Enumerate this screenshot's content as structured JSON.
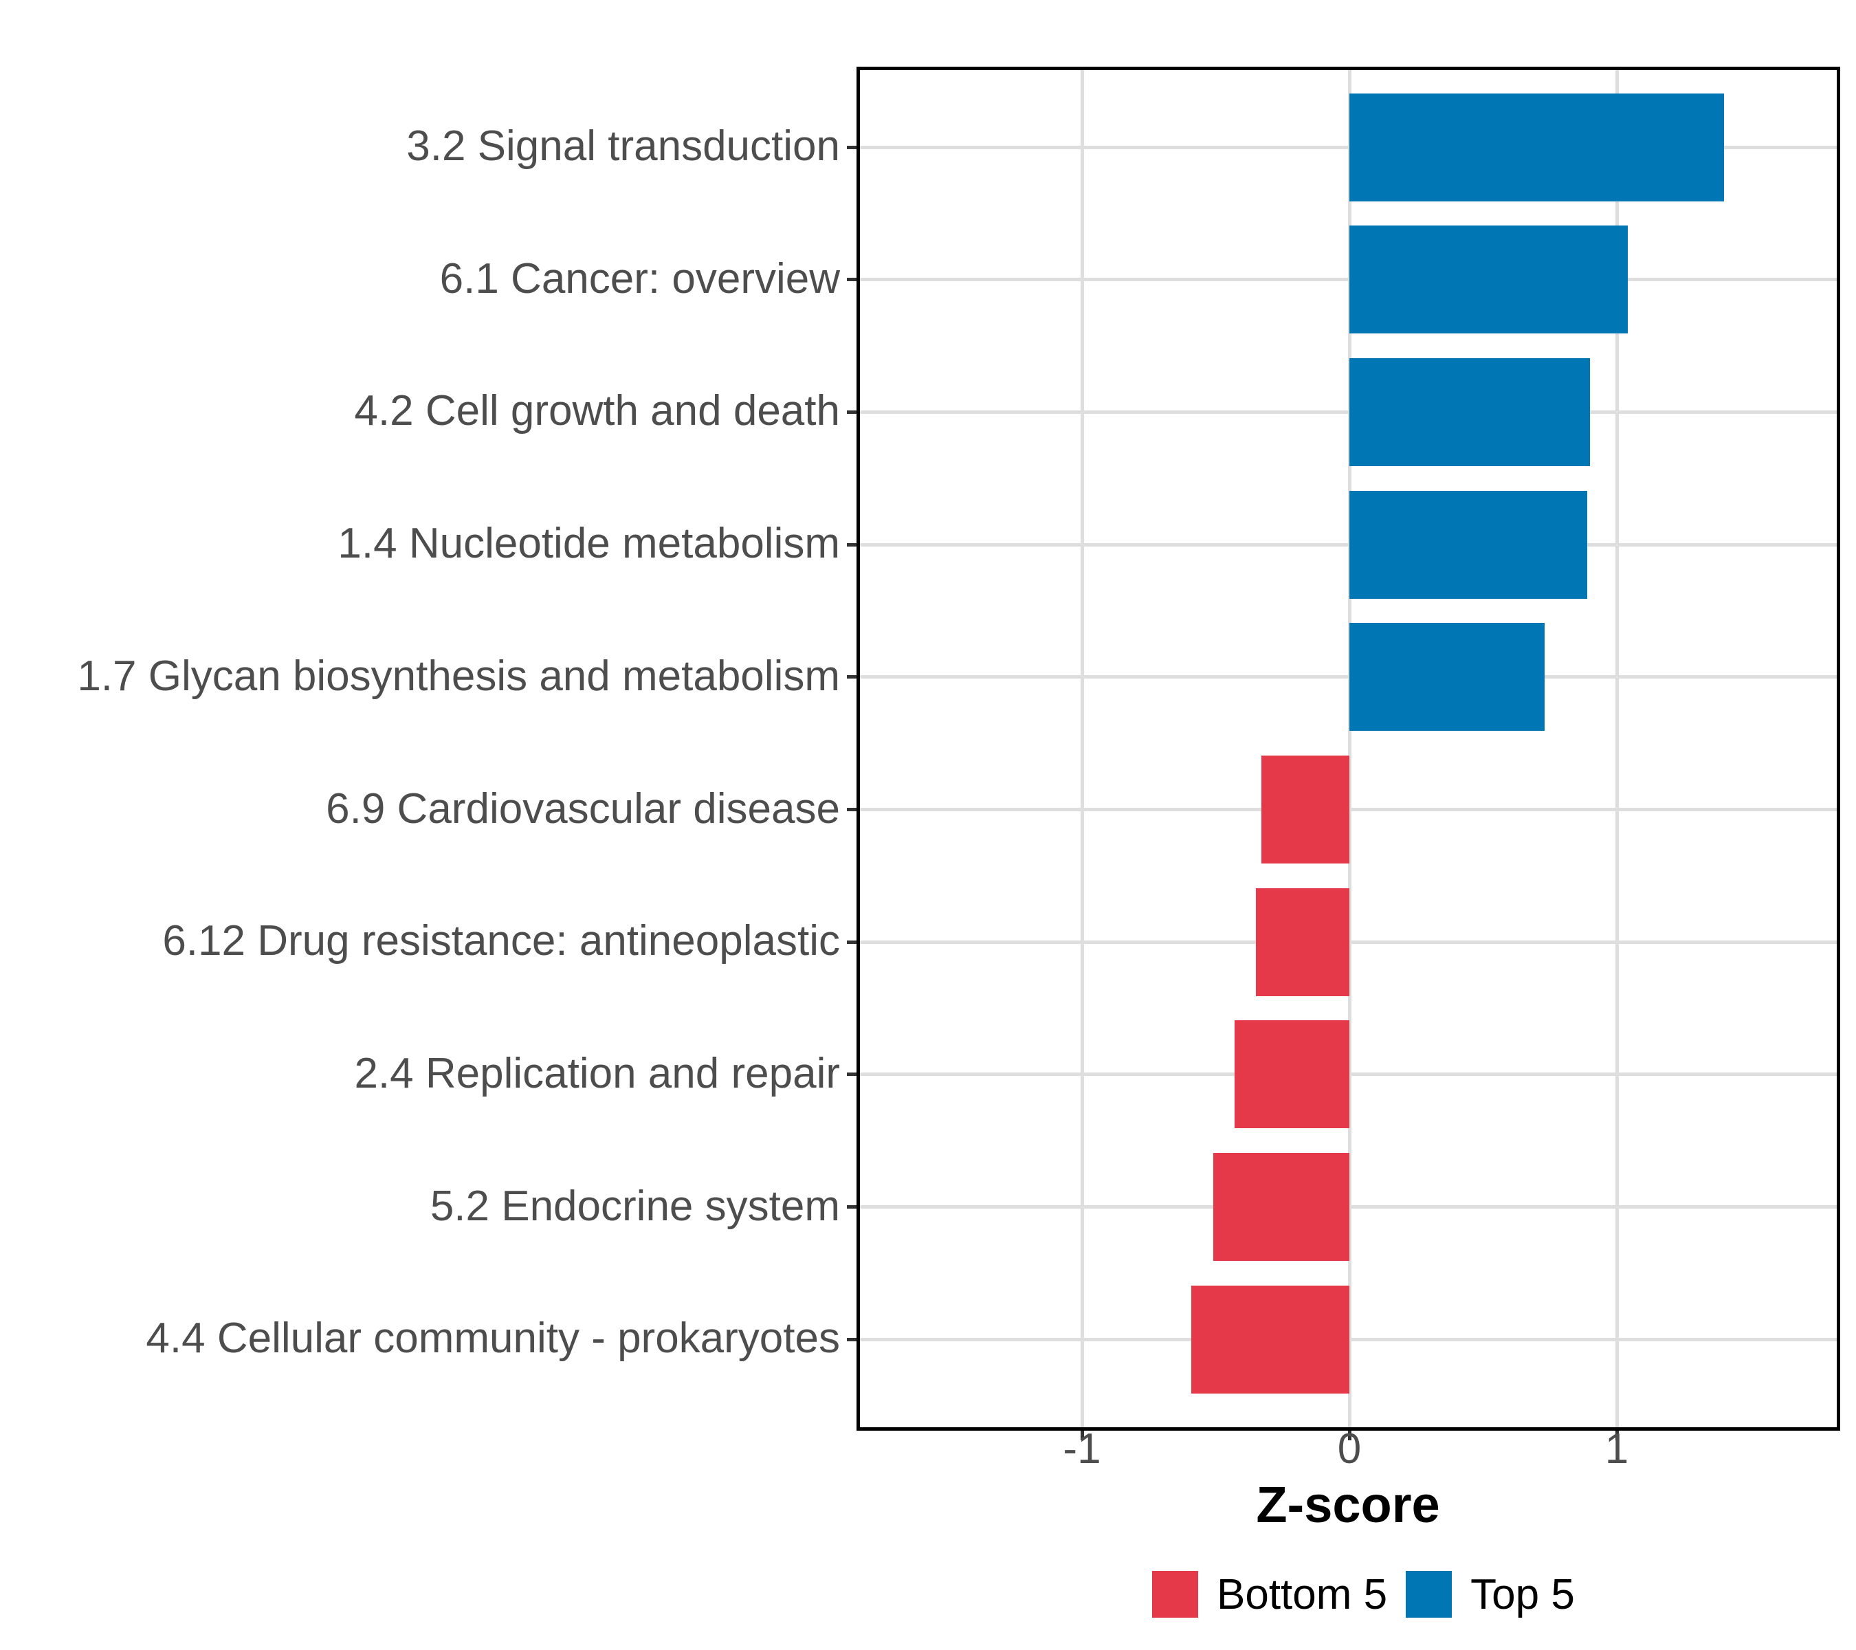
{
  "chart_data": {
    "type": "bar",
    "orientation": "horizontal",
    "title": "",
    "xlabel": "Z-score",
    "ylabel": "",
    "categories": [
      "3.2 Signal transduction",
      "6.1 Cancer: overview",
      "4.2 Cell growth and death",
      "1.4 Nucleotide metabolism",
      "1.7 Glycan biosynthesis and metabolism",
      "6.9 Cardiovascular disease",
      "6.12 Drug resistance: antineoplastic",
      "2.4 Replication and repair",
      "5.2 Endocrine system",
      "4.4 Cellular community - prokaryotes"
    ],
    "values": [
      1.4,
      1.04,
      0.9,
      0.89,
      0.73,
      -0.33,
      -0.35,
      -0.43,
      -0.51,
      -0.59
    ],
    "groups": [
      "Top 5",
      "Top 5",
      "Top 5",
      "Top 5",
      "Top 5",
      "Bottom 5",
      "Bottom 5",
      "Bottom 5",
      "Bottom 5",
      "Bottom 5"
    ],
    "xlim": [
      -1.84,
      1.83
    ],
    "x_tick_values": [
      -1,
      0,
      1
    ],
    "x_tick_labels": [
      "-1",
      "0",
      "1"
    ],
    "grid": "major",
    "legend_position": "bottom",
    "legend": [
      {
        "label": "Bottom 5",
        "color": "#E53849"
      },
      {
        "label": "Top 5",
        "color": "#0076B4"
      }
    ],
    "colors": {
      "Top 5": "#0076B4",
      "Bottom 5": "#E53849",
      "gridline": "#DEDEDE",
      "axis_text": "#4D4D4D",
      "axis_line": "#000000",
      "background": "#FFFFFF"
    }
  }
}
